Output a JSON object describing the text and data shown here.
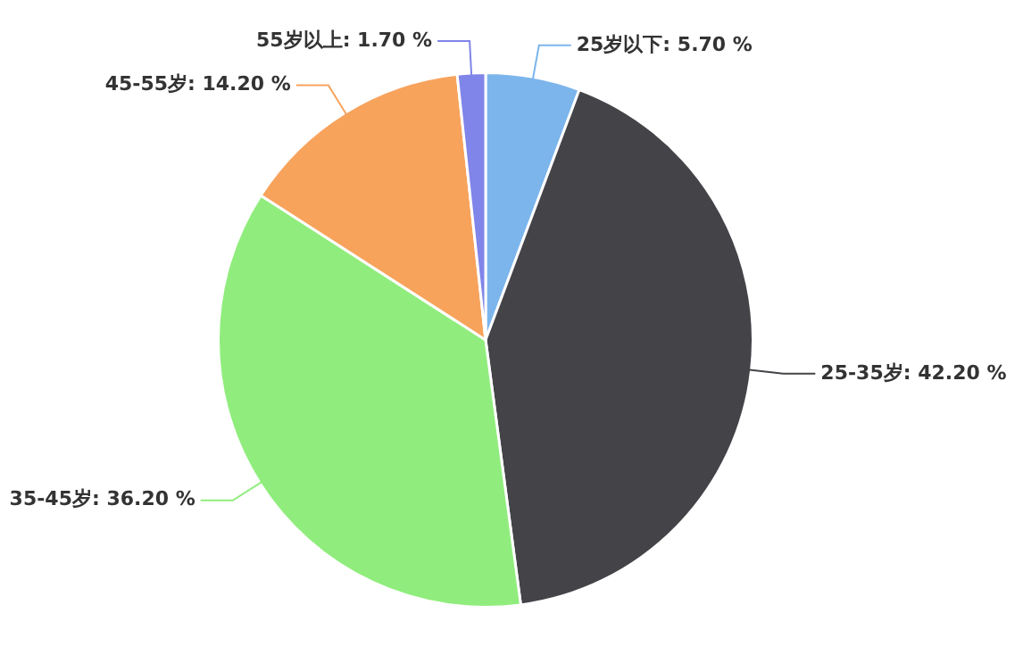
{
  "chart_data": {
    "type": "pie",
    "categories": [
      "25岁以下",
      "25-35岁",
      "35-45岁",
      "45-55岁",
      "55岁以上"
    ],
    "values": [
      5.7,
      42.2,
      36.2,
      14.2,
      1.7
    ],
    "value_labels": [
      "5.70 %",
      "42.20 %",
      "36.20 %",
      "14.20 %",
      "1.70 %"
    ],
    "colors": [
      "#7cb5ec",
      "#434348",
      "#90ed7d",
      "#f7a35c",
      "#8085e9"
    ],
    "legend": false
  }
}
